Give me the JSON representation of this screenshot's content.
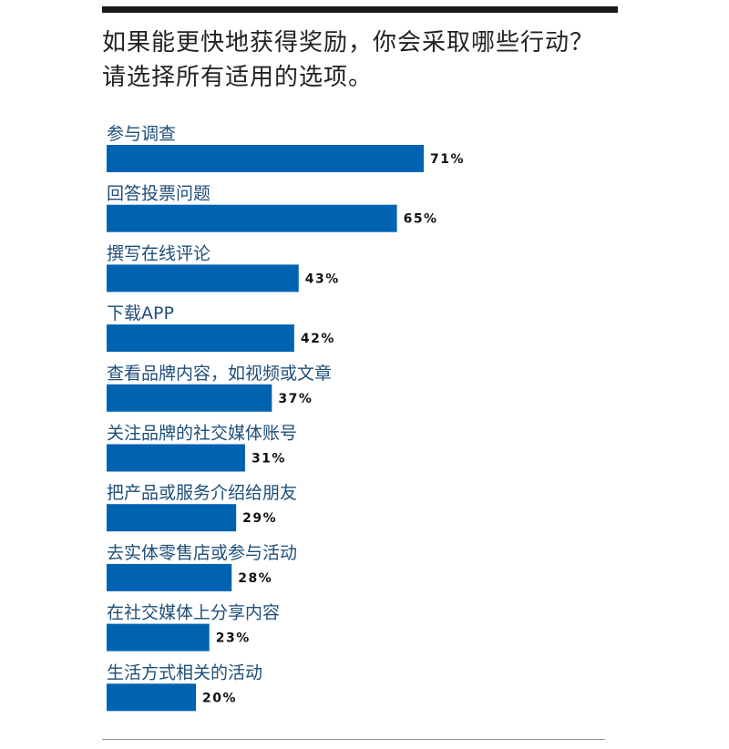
{
  "title": {
    "line1": "如果能更快地获得奖励，你会采取哪些行动？",
    "line2": "请选择所有适用的选项。"
  },
  "colors": {
    "bar": "#0063b2",
    "label": "#1f4e79",
    "value": "#111111"
  },
  "chart_data": {
    "type": "bar",
    "orientation": "horizontal",
    "title": "如果能更快地获得奖励，你会采取哪些行动？请选择所有适用的选项。",
    "xlabel": "",
    "ylabel": "",
    "value_suffix": "%",
    "xlim": [
      0,
      100
    ],
    "grid": false,
    "categories": [
      "参与调查",
      "回答投票问题",
      "撰写在线评论",
      "下载APP",
      "查看品牌内容，如视频或文章",
      "关注品牌的社交媒体账号",
      "把产品或服务介绍给朋友",
      "去实体零售店或参与活动",
      "在社交媒体上分享内容",
      "生活方式相关的活动"
    ],
    "values": [
      71,
      65,
      43,
      42,
      37,
      31,
      29,
      28,
      23,
      20
    ],
    "data_labels": [
      "71%",
      "65%",
      "43%",
      "42%",
      "37%",
      "31%",
      "29%",
      "28%",
      "23%",
      "20%"
    ]
  }
}
